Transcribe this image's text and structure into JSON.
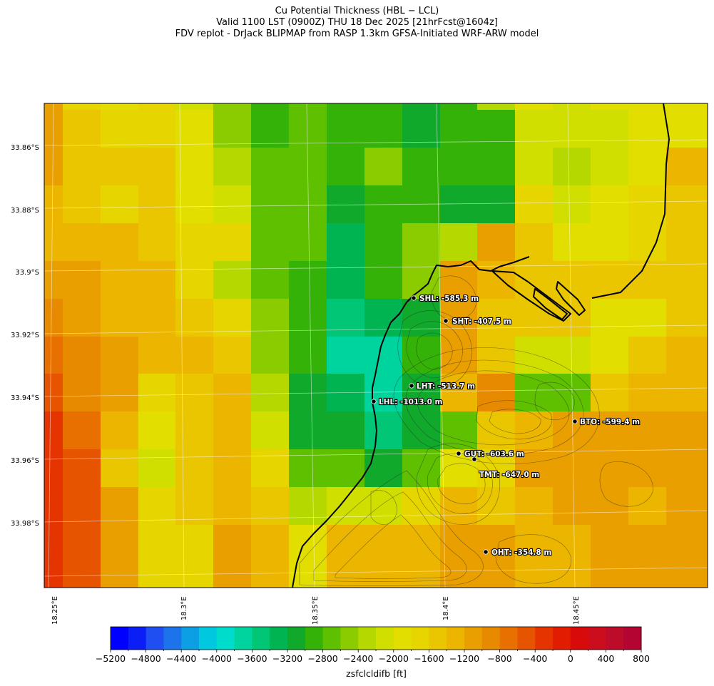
{
  "title": {
    "line1": "Cu Potential Thickness (HBL − LCL)",
    "line2": "Valid 1100 LST (0900Z) THU 18 Dec 2025 [21hrFcst@1604z]",
    "line3": "FDV replot - DrJack BLIPMAP from RASP 1.3km GFSA-Initiated WRF-ARW model"
  },
  "map": {
    "lat_labels": [
      "33.86°S",
      "33.88°S",
      "33.9°S",
      "33.92°S",
      "33.94°S",
      "33.96°S",
      "33.98°S"
    ],
    "lon_labels": [
      "18.25°E",
      "18.3°E",
      "18.35°E",
      "18.4°E",
      "18.45°E"
    ],
    "grid_ft": [
      [
        -1100,
        -1700,
        -2000,
        -1800,
        -2100,
        -2600,
        -2900,
        -2800,
        -3000,
        -3000,
        -3100,
        -2900,
        -2300,
        -1900,
        -2100,
        -2000,
        -1900,
        -1900
      ],
      [
        -1100,
        -1600,
        -1700,
        -1700,
        -1900,
        -2600,
        -2900,
        -2800,
        -3000,
        -3000,
        -3100,
        -3000,
        -2900,
        -2100,
        -2100,
        -2100,
        -1900,
        -1900
      ],
      [
        -1100,
        -1500,
        -1500,
        -1600,
        -2000,
        -2400,
        -2800,
        -2800,
        -2900,
        -2600,
        -2900,
        -3000,
        -2900,
        -2100,
        -2400,
        -2100,
        -2000,
        -1400
      ],
      [
        -1300,
        -1600,
        -1700,
        -1600,
        -1900,
        -2100,
        -2700,
        -2800,
        -3200,
        -3000,
        -3000,
        -3200,
        -3200,
        -1700,
        -2100,
        -1900,
        -1700,
        -1600
      ],
      [
        -1300,
        -1400,
        -1400,
        -1500,
        -1700,
        -1800,
        -2700,
        -2800,
        -3400,
        -3000,
        -2600,
        -2400,
        -1200,
        -1600,
        -1900,
        -1900,
        -1700,
        -1500
      ],
      [
        -1200,
        -1200,
        -1300,
        -1300,
        -1700,
        -2300,
        -2800,
        -2900,
        -3300,
        -3000,
        -2600,
        -1200,
        -1400,
        -1600,
        -1500,
        -1600,
        -1600,
        -1500
      ],
      [
        -900,
        -1100,
        -1300,
        -1400,
        -1500,
        -1700,
        -2600,
        -2900,
        -3600,
        -3300,
        -3100,
        -1100,
        -1500,
        -1600,
        -1600,
        -2000,
        -1900,
        -1500
      ],
      [
        -800,
        -900,
        -1200,
        -1300,
        -1300,
        -1600,
        -2500,
        -3000,
        -3700,
        -3800,
        -3000,
        -1200,
        -1500,
        -2200,
        -2200,
        -1900,
        -1500,
        -1300
      ],
      [
        -600,
        -900,
        -1200,
        -1800,
        -1500,
        -1300,
        -2300,
        -3100,
        -3300,
        -3700,
        -3200,
        -1300,
        -1000,
        -2800,
        -2700,
        -1500,
        -1300,
        -1300
      ],
      [
        -400,
        -700,
        -1300,
        -1900,
        -1600,
        -1300,
        -2100,
        -3100,
        -3100,
        -3600,
        -3200,
        -2700,
        -1600,
        -1300,
        -1100,
        -1100,
        -1100,
        -1100
      ],
      [
        -300,
        -600,
        -1500,
        -2100,
        -1600,
        -1300,
        -1800,
        -2800,
        -2800,
        -3100,
        -2800,
        -1900,
        -1700,
        -1200,
        -1100,
        -1100,
        -1200,
        -1100
      ],
      [
        -300,
        -600,
        -1200,
        -1800,
        -1600,
        -1300,
        -1600,
        -2300,
        -2200,
        -2100,
        -1800,
        -1300,
        -1500,
        -1400,
        -1200,
        -1200,
        -1300,
        -1200
      ],
      [
        -400,
        -500,
        -1100,
        -1700,
        -1800,
        -1200,
        -1300,
        -2000,
        -1300,
        -1400,
        -1300,
        -1200,
        -1200,
        -1300,
        -1300,
        -1200,
        -1100,
        -1200
      ]
    ],
    "stations": [
      {
        "label": "SHL: -585.3 m"
      },
      {
        "label": "SHT: -407.5 m"
      },
      {
        "label": "LHT: -513.7 m"
      },
      {
        "label": "LHL: -1013.0 m"
      },
      {
        "label": "BTO: -599.4 m"
      },
      {
        "label": "GUT: -603.6 m"
      },
      {
        "label": "TMT: -647.0 m"
      },
      {
        "label": "OHT: -354.8 m"
      }
    ]
  },
  "colorbar": {
    "min": -5200,
    "max": 800,
    "step": 200,
    "colors": [
      "#0000ff",
      "#0a1ef5",
      "#1f4ff0",
      "#1c73ea",
      "#0c9fe4",
      "#00c8df",
      "#00dccc",
      "#00d49e",
      "#00c676",
      "#00b452",
      "#10a92c",
      "#34b207",
      "#5fc000",
      "#8bcc00",
      "#b5d800",
      "#d1df00",
      "#e2df00",
      "#e7d500",
      "#eac600",
      "#ebb500",
      "#e99f00",
      "#e88a00",
      "#e77000",
      "#e65400",
      "#e53400",
      "#e11c00",
      "#d90a0a",
      "#cb0d1e",
      "#bd0b2a",
      "#b30432"
    ],
    "tick_labels": [
      "−5200",
      "−4800",
      "−4400",
      "−4000",
      "−3600",
      "−3200",
      "−2800",
      "−2400",
      "−2000",
      "−1600",
      "−1200",
      "−800",
      "−400",
      "0",
      "400",
      "800"
    ],
    "label": "zsfclcldifb [ft]"
  }
}
